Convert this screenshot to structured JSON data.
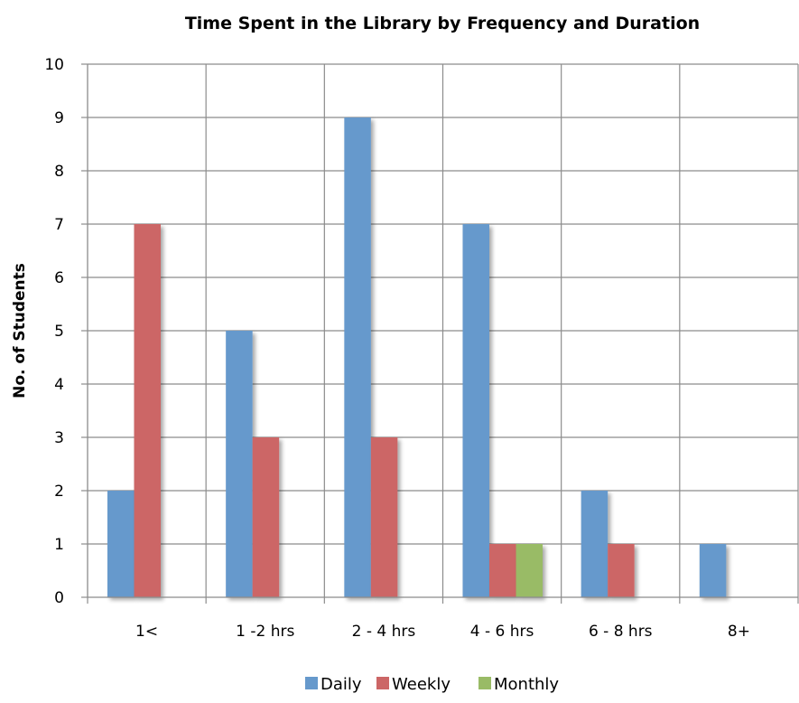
{
  "chart_data": {
    "type": "bar",
    "title": "Time Spent in the Library by Frequency and Duration",
    "xlabel": "",
    "ylabel": "No. of Students",
    "ylim": [
      0,
      10
    ],
    "yticks": [
      "0",
      "1",
      "2",
      "3",
      "4",
      "5",
      "6",
      "7",
      "8",
      "9",
      "10"
    ],
    "categories": [
      "1<",
      "1 -2 hrs",
      "2 - 4 hrs",
      "4 - 6 hrs",
      "6 - 8 hrs",
      "8+"
    ],
    "series": [
      {
        "name": "Daily",
        "color": "#6699CC",
        "values": [
          2,
          5,
          9,
          7,
          2,
          1
        ]
      },
      {
        "name": "Weekly",
        "color": "#CC6666",
        "values": [
          7,
          3,
          3,
          1,
          1,
          0
        ]
      },
      {
        "name": "Monthly",
        "color": "#99BB66",
        "values": [
          0,
          0,
          0,
          1,
          0,
          0
        ]
      }
    ],
    "grid": true,
    "legend": "bottom"
  }
}
